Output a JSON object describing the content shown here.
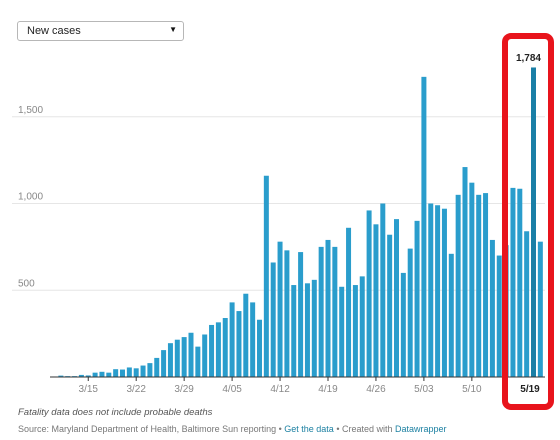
{
  "dropdown": {
    "selected": "New cases"
  },
  "chart_data": {
    "type": "bar",
    "title": "",
    "xlabel": "",
    "ylabel": "",
    "ylim": [
      0,
      2000
    ],
    "yticks": [
      {
        "value": 500,
        "label": "500"
      },
      {
        "value": 1000,
        "label": "1,000"
      },
      {
        "value": 1500,
        "label": "1,500"
      }
    ],
    "xticks": [
      "3/15",
      "3/22",
      "3/29",
      "4/05",
      "4/12",
      "4/19",
      "4/26",
      "5/03",
      "5/10"
    ],
    "grid": true,
    "bar_color": "#2a9dcc",
    "highlight_bar_color": "#1a7fa6",
    "highlight_box_color": "#e8141c",
    "highlight": {
      "value_label": "1,784",
      "date_label": "5/19"
    },
    "categories": [
      "3/10",
      "3/11",
      "3/12",
      "3/13",
      "3/14",
      "3/15",
      "3/16",
      "3/17",
      "3/18",
      "3/19",
      "3/20",
      "3/21",
      "3/22",
      "3/23",
      "3/24",
      "3/25",
      "3/26",
      "3/27",
      "3/28",
      "3/29",
      "3/30",
      "3/31",
      "4/01",
      "4/02",
      "4/03",
      "4/04",
      "4/05",
      "4/06",
      "4/07",
      "4/08",
      "4/09",
      "4/10",
      "4/11",
      "4/12",
      "4/13",
      "4/14",
      "4/15",
      "4/16",
      "4/17",
      "4/18",
      "4/19",
      "4/20",
      "4/21",
      "4/22",
      "4/23",
      "4/24",
      "4/25",
      "4/26",
      "4/27",
      "4/28",
      "4/29",
      "4/30",
      "5/01",
      "5/02",
      "5/03",
      "5/04",
      "5/05",
      "5/06",
      "5/07",
      "5/08",
      "5/09",
      "5/10",
      "5/11",
      "5/12",
      "5/13",
      "5/14",
      "5/15",
      "5/16",
      "5/17",
      "5/18",
      "5/19",
      "5/20"
    ],
    "values": [
      3,
      8,
      5,
      5,
      12,
      9,
      25,
      30,
      25,
      45,
      43,
      55,
      50,
      66,
      80,
      110,
      155,
      195,
      215,
      230,
      255,
      175,
      245,
      300,
      315,
      340,
      430,
      380,
      480,
      430,
      330,
      1160,
      660,
      780,
      730,
      530,
      720,
      540,
      560,
      750,
      790,
      750,
      520,
      860,
      530,
      580,
      960,
      880,
      1000,
      820,
      910,
      600,
      740,
      900,
      1730,
      1000,
      990,
      970,
      710,
      1050,
      1210,
      1120,
      1050,
      1060,
      790,
      700,
      760,
      1090,
      1085,
      840,
      1784,
      780
    ],
    "highlight_index": 70
  },
  "footnote": "Fatality data does not include probable deaths",
  "source": {
    "prefix": "Source: Maryland Department of Health, Baltimore Sun reporting • ",
    "get_data": "Get the data",
    "middle": " • Created with ",
    "datawrapper": "Datawrapper"
  }
}
